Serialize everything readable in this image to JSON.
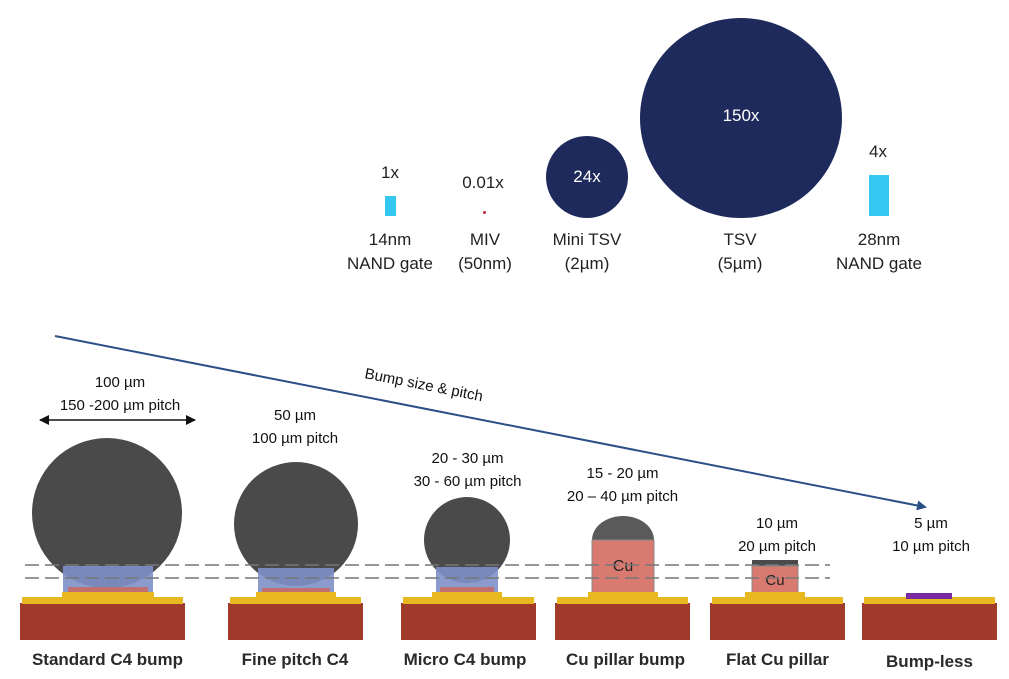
{
  "top_row": {
    "items": [
      {
        "ratio": "1x",
        "name_line1": "14nm",
        "name_line2": "NAND gate"
      },
      {
        "ratio": "0.01x",
        "name_line1": "MIV",
        "name_line2": "(50nm)"
      },
      {
        "ratio": "24x",
        "name_line1": "Mini TSV",
        "name_line2": "(2µm)"
      },
      {
        "ratio": "150x",
        "name_line1": "TSV",
        "name_line2": "(5µm)"
      },
      {
        "ratio": "4x",
        "name_line1": "28nm",
        "name_line2": "NAND gate"
      }
    ],
    "colors": {
      "navy": "#1f2a5c",
      "cyan": "#34c8f0",
      "dot": "#cc2244"
    }
  },
  "arrow_label": "Bump size & pitch",
  "bumps": [
    {
      "size": "100 µm",
      "pitch": "150 -200 µm pitch",
      "caption": "Standard C4 bump"
    },
    {
      "size": "50 µm",
      "pitch": "100 µm pitch",
      "caption": "Fine pitch C4"
    },
    {
      "size": "20 - 30 µm",
      "pitch": "30 - 60 µm pitch",
      "caption": "Micro C4 bump"
    },
    {
      "size": "15 - 20 µm",
      "pitch": "20 – 40 µm pitch",
      "caption": "Cu pillar bump",
      "pillar_label": "Cu"
    },
    {
      "size": "10 µm",
      "pitch": "20 µm pitch",
      "caption": "Flat Cu pillar",
      "pillar_label": "Cu"
    },
    {
      "size": "5 µm",
      "pitch": "10 µm pitch",
      "caption": "Bump-less"
    }
  ],
  "colors": {
    "solder": "#4a4a4a",
    "substrate": "#a03a2a",
    "pad": "#e8b820",
    "underfill": "#8090c8",
    "copper": "#d97a70",
    "arrow": "#2b4f86",
    "bumpless_pad": "#7a2aa0"
  }
}
